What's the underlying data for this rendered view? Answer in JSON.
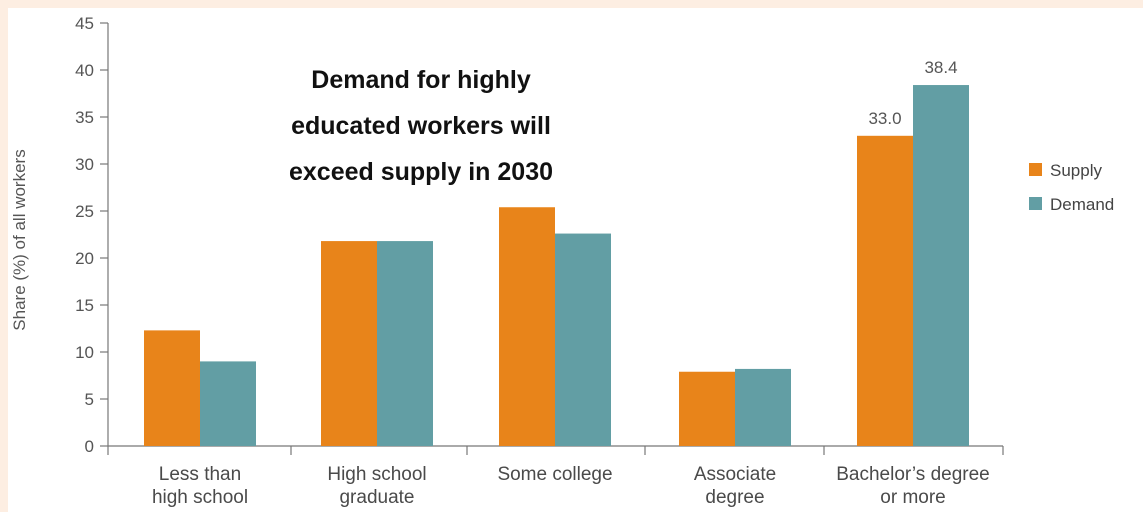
{
  "chart_data": {
    "type": "bar",
    "title_lines": [
      "Demand for highly",
      "educated workers will",
      "exceed supply in 2030"
    ],
    "ylabel": "Share (%) of all workers",
    "xlabel": "",
    "ylim": [
      0,
      45
    ],
    "yticks": [
      "0",
      "5",
      "10",
      "15",
      "20",
      "25",
      "30",
      "35",
      "40",
      "45"
    ],
    "categories": [
      [
        "Less than",
        "high school"
      ],
      [
        "High school",
        "graduate"
      ],
      [
        "Some college"
      ],
      [
        "Associate",
        "degree"
      ],
      [
        "Bachelor’s degree",
        "or more"
      ]
    ],
    "series": [
      {
        "name": "Supply",
        "color": "#e8841a",
        "values": [
          12.3,
          21.8,
          25.4,
          7.9,
          33.0
        ]
      },
      {
        "name": "Demand",
        "color": "#629ea4",
        "values": [
          9.0,
          21.8,
          22.6,
          8.2,
          38.4
        ]
      }
    ],
    "data_labels": [
      {
        "series": 0,
        "index": 4,
        "text": "33.0"
      },
      {
        "series": 1,
        "index": 4,
        "text": "38.4"
      }
    ],
    "legend_position": "right",
    "grid": false
  }
}
